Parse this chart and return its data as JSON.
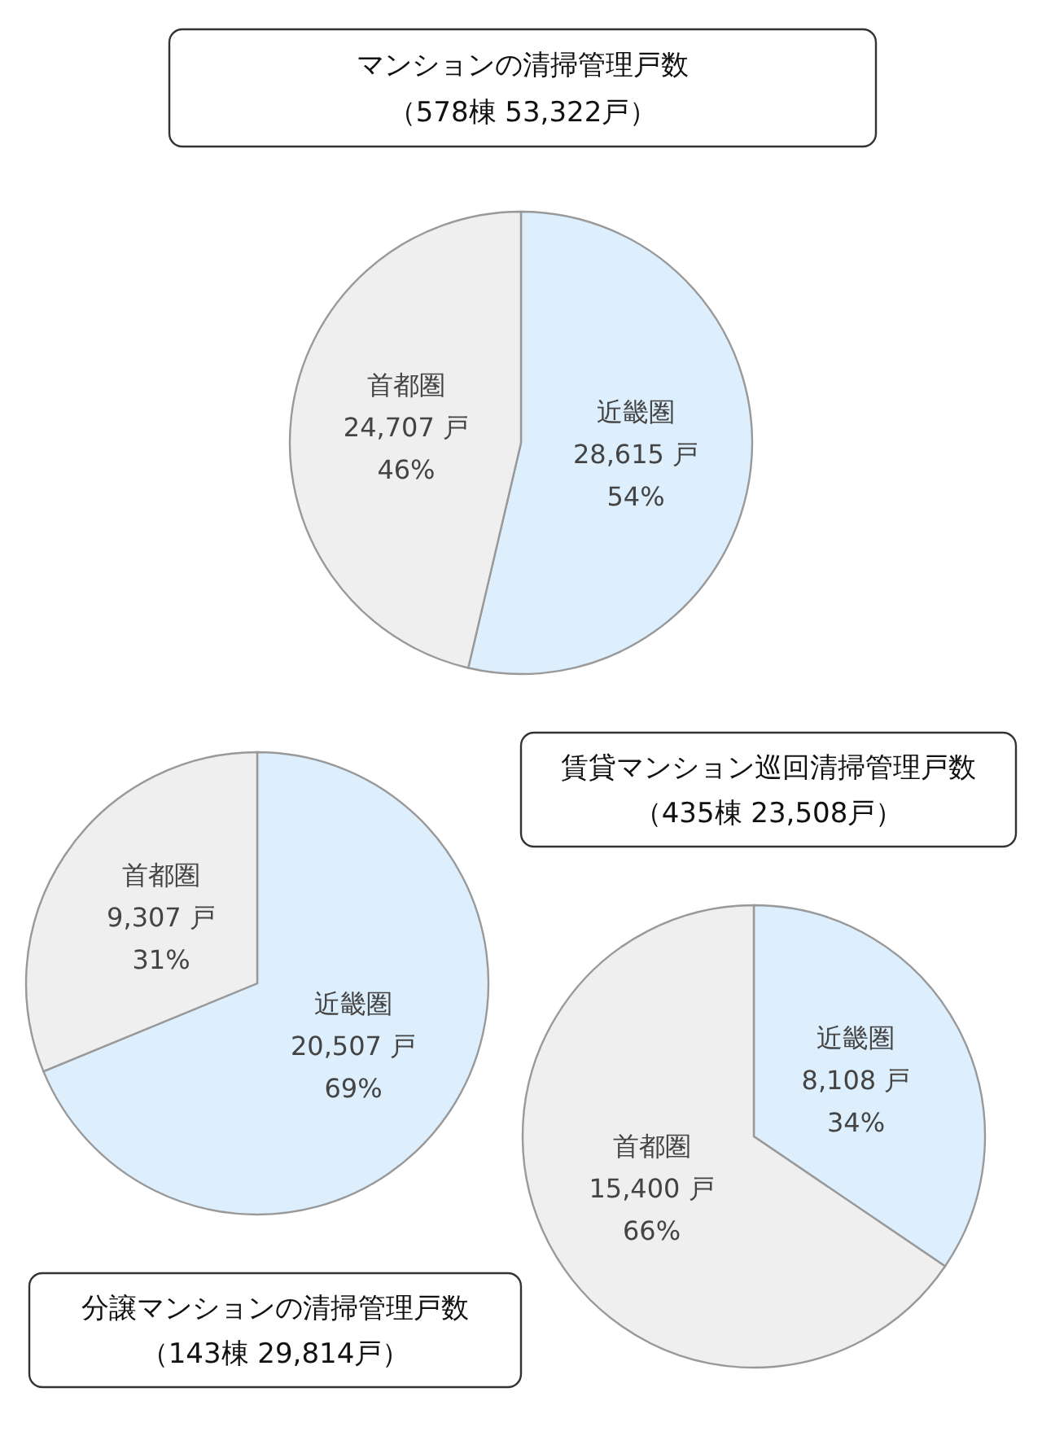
{
  "chart_data": [
    {
      "type": "pie",
      "title": "マンションの清掃管理戸数",
      "subtitle": "（578棟 53,322戸）",
      "categories": [
        "近畿圏",
        "首都圏"
      ],
      "values": [
        28615,
        24707
      ],
      "colors": [
        "#ddeefc",
        "#efefef"
      ],
      "value_labels": [
        "28,615 戸\n54%",
        "24,707 戸\n46%"
      ]
    },
    {
      "type": "pie",
      "title": "分譲マンションの清掃管理戸数",
      "subtitle": "（143棟 29,814戸）",
      "categories": [
        "近畿圏",
        "首都圏"
      ],
      "values": [
        20507,
        9307
      ],
      "colors": [
        "#ddeefc",
        "#efefef"
      ],
      "value_labels": [
        "20,507 戸\n69%",
        "9,307 戸\n31%"
      ]
    },
    {
      "type": "pie",
      "title": "賃貸マンション巡回清掃管理戸数",
      "subtitle": "（435棟 23,508戸）",
      "categories": [
        "近畿圏",
        "首都圏"
      ],
      "values": [
        8108,
        15400
      ],
      "colors": [
        "#ddeefc",
        "#efefef"
      ],
      "value_labels": [
        "8,108 戸\n34%",
        "15,400 戸\n66%"
      ]
    }
  ]
}
